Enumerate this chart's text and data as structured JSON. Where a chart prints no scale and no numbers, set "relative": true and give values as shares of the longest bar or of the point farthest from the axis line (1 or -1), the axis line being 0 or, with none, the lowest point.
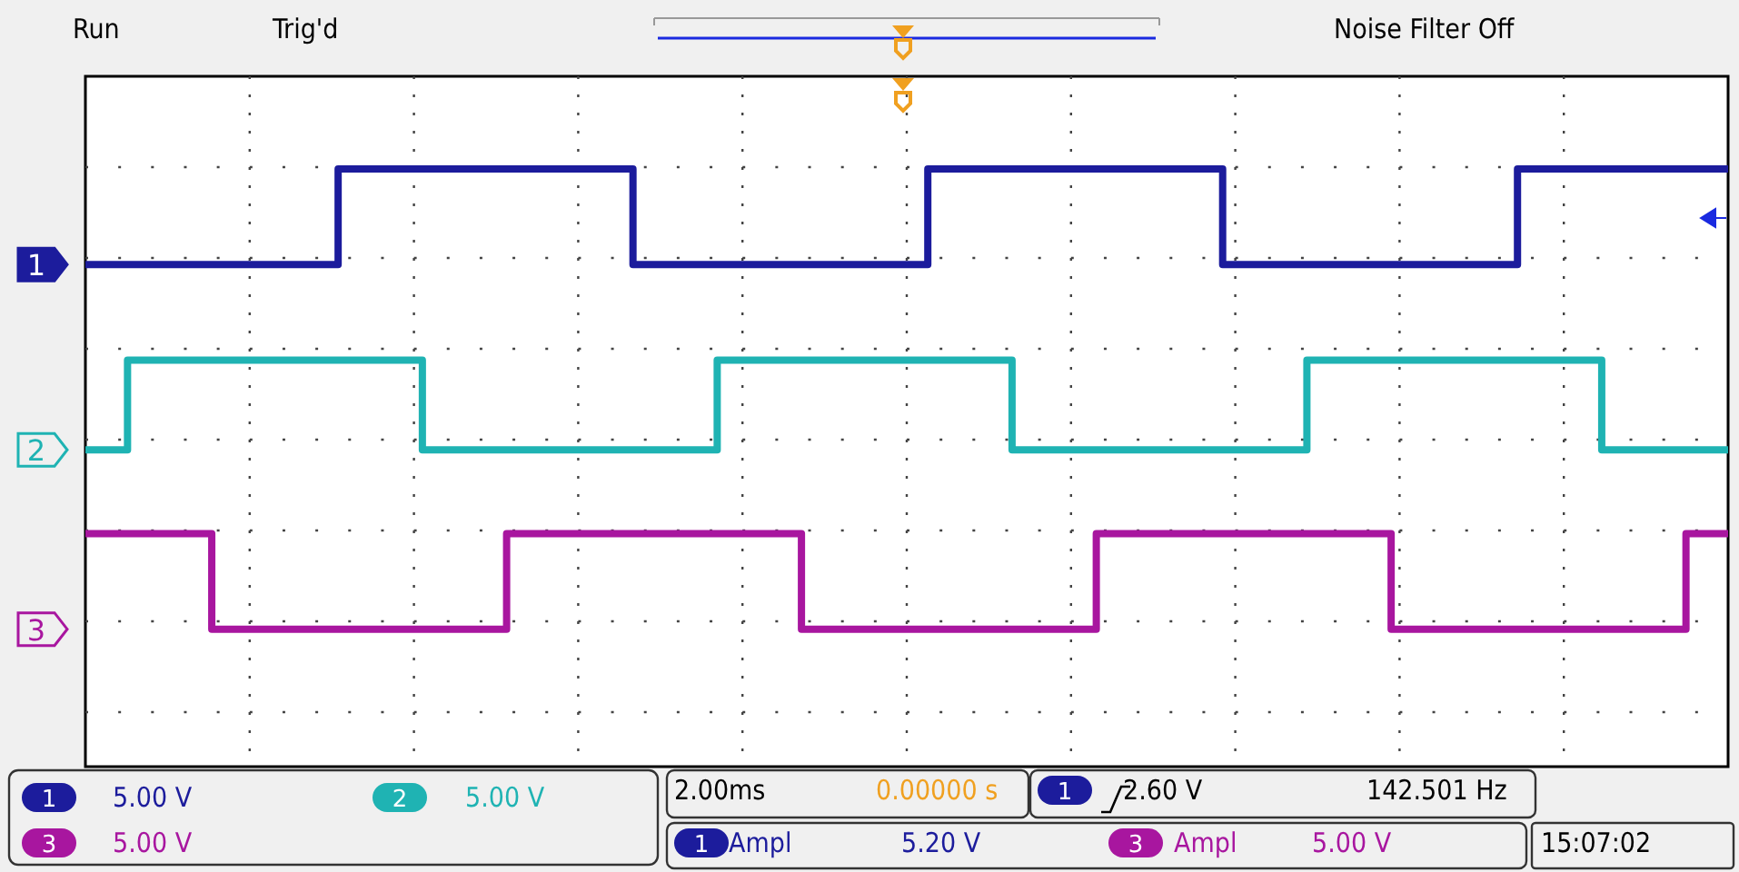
{
  "chart_data": {
    "type": "step",
    "relative": true,
    "grid": true,
    "categories": [
      null,
      null,
      null,
      null,
      null,
      null,
      null,
      null,
      null,
      null,
      null,
      null,
      null,
      null,
      null,
      null,
      null,
      null,
      null,
      null,
      null,
      null,
      null,
      null,
      null,
      null,
      null,
      null,
      null,
      null,
      null,
      null,
      null,
      null,
      null,
      null,
      null,
      null,
      null,
      null
    ],
    "series": [
      {
        "name": "1",
        "color": "#1c1c9c",
        "values": [
          0.84,
          0.84,
          0.84,
          0.84,
          0.84,
          0.84,
          1,
          1,
          1,
          1,
          1,
          1,
          1,
          0.84,
          0.84,
          0.84,
          0.84,
          0.84,
          0.84,
          0.84,
          1,
          1,
          1,
          1,
          1,
          1,
          1,
          0.84,
          0.84,
          0.84,
          0.84,
          0.84,
          0.84,
          0.84,
          1,
          1,
          1,
          1,
          1,
          1
        ]
      },
      {
        "name": "2",
        "color": "#1fb3b3",
        "values": [
          0.53,
          0.68,
          0.68,
          0.68,
          0.68,
          0.68,
          0.68,
          0.68,
          0.53,
          0.53,
          0.53,
          0.53,
          0.53,
          0.53,
          0.53,
          0.68,
          0.68,
          0.68,
          0.68,
          0.68,
          0.68,
          0.68,
          0.53,
          0.53,
          0.53,
          0.53,
          0.53,
          0.53,
          0.53,
          0.68,
          0.68,
          0.68,
          0.68,
          0.68,
          0.68,
          0.68,
          0.53,
          0.53,
          0.53,
          0.53
        ]
      },
      {
        "name": "3",
        "color": "#a8169f",
        "values": [
          0.39,
          0.39,
          0.39,
          0.23,
          0.23,
          0.23,
          0.23,
          0.23,
          0.23,
          0.23,
          0.39,
          0.39,
          0.39,
          0.39,
          0.39,
          0.39,
          0.39,
          0.23,
          0.23,
          0.23,
          0.23,
          0.23,
          0.23,
          0.23,
          0.39,
          0.39,
          0.39,
          0.39,
          0.39,
          0.39,
          0.39,
          0.23,
          0.23,
          0.23,
          0.23,
          0.23,
          0.23,
          0.23,
          0.39,
          0.39
        ]
      }
    ],
    "annotations": [
      "Run",
      "Trig'd",
      "Noise Filter Off",
      "5.00 V",
      "5.00 V",
      "5.00 V",
      "2.00ms",
      "0.00000 s",
      "2.60 V",
      "142.501 Hz",
      "Ampl",
      "5.20 V",
      "Ampl",
      "5.00 V",
      "15:07:02"
    ]
  }
}
